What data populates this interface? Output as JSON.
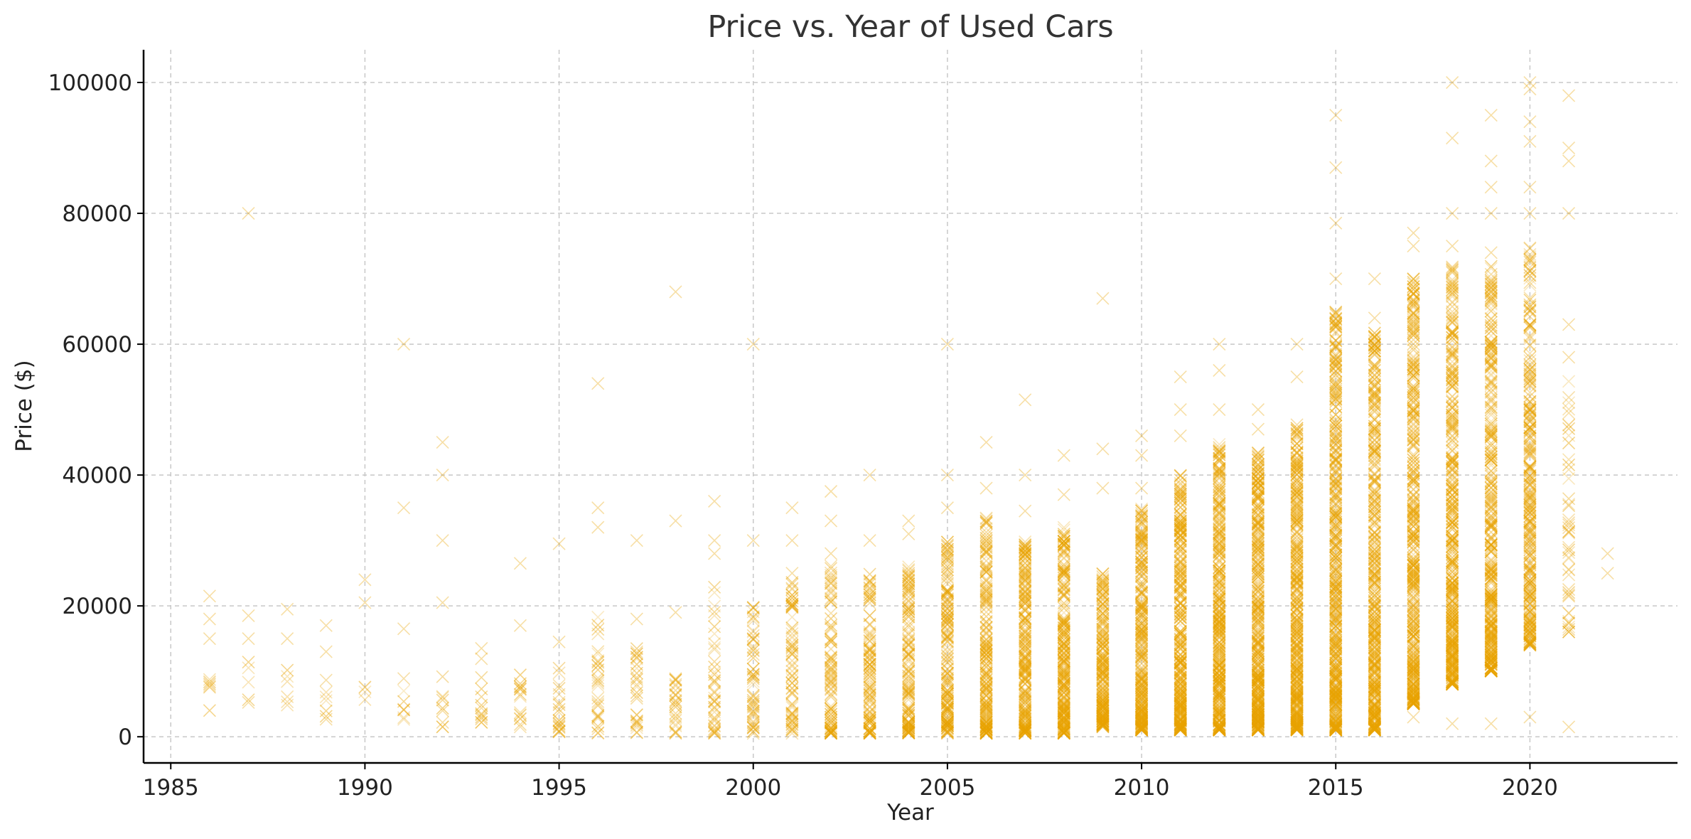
{
  "chart_data": {
    "type": "scatter",
    "title": "Price vs. Year of Used Cars",
    "xlabel": "Year",
    "ylabel": "Price ($)",
    "xlim": [
      1984.3,
      2023.8
    ],
    "ylim": [
      -4000,
      105000
    ],
    "xticks": [
      1985,
      1990,
      1995,
      2000,
      2005,
      2010,
      2015,
      2020
    ],
    "yticks": [
      0,
      20000,
      40000,
      60000,
      80000,
      100000
    ],
    "grid": true,
    "marker": "x",
    "color": "#E8A200",
    "outliers": [
      [
        1986,
        21500
      ],
      [
        1986,
        18000
      ],
      [
        1986,
        15000
      ],
      [
        1987,
        80000
      ],
      [
        1987,
        18500
      ],
      [
        1987,
        15000
      ],
      [
        1988,
        19500
      ],
      [
        1988,
        15000
      ],
      [
        1989,
        17000
      ],
      [
        1989,
        13000
      ],
      [
        1990,
        24000
      ],
      [
        1990,
        20500
      ],
      [
        1991,
        60000
      ],
      [
        1991,
        35000
      ],
      [
        1991,
        16500
      ],
      [
        1992,
        45000
      ],
      [
        1992,
        40000
      ],
      [
        1992,
        30000
      ],
      [
        1992,
        20500
      ],
      [
        1993,
        13500
      ],
      [
        1994,
        26500
      ],
      [
        1994,
        17000
      ],
      [
        1995,
        29500
      ],
      [
        1995,
        14500
      ],
      [
        1996,
        54000
      ],
      [
        1996,
        35000
      ],
      [
        1996,
        32000
      ],
      [
        1997,
        30000
      ],
      [
        1997,
        18000
      ],
      [
        1998,
        68000
      ],
      [
        1998,
        33000
      ],
      [
        1998,
        19000
      ],
      [
        1999,
        36000
      ],
      [
        1999,
        30000
      ],
      [
        1999,
        28000
      ],
      [
        2000,
        60000
      ],
      [
        2000,
        30000
      ],
      [
        2001,
        35000
      ],
      [
        2001,
        30000
      ],
      [
        2001,
        25000
      ],
      [
        2002,
        37500
      ],
      [
        2002,
        33000
      ],
      [
        2002,
        28000
      ],
      [
        2003,
        40000
      ],
      [
        2003,
        30000
      ],
      [
        2004,
        33000
      ],
      [
        2004,
        31000
      ],
      [
        2005,
        60000
      ],
      [
        2005,
        40000
      ],
      [
        2005,
        35000
      ],
      [
        2006,
        45000
      ],
      [
        2006,
        38000
      ],
      [
        2007,
        51500
      ],
      [
        2007,
        40000
      ],
      [
        2007,
        34500
      ],
      [
        2008,
        43000
      ],
      [
        2008,
        37000
      ],
      [
        2009,
        67000
      ],
      [
        2009,
        44000
      ],
      [
        2009,
        38000
      ],
      [
        2010,
        46000
      ],
      [
        2010,
        43000
      ],
      [
        2010,
        38000
      ],
      [
        2011,
        55000
      ],
      [
        2011,
        50000
      ],
      [
        2011,
        46000
      ],
      [
        2012,
        60000
      ],
      [
        2012,
        56000
      ],
      [
        2012,
        50000
      ],
      [
        2013,
        50000
      ],
      [
        2013,
        47000
      ],
      [
        2014,
        60000
      ],
      [
        2014,
        55000
      ],
      [
        2015,
        95000
      ],
      [
        2015,
        87000
      ],
      [
        2015,
        78500
      ],
      [
        2015,
        70000
      ],
      [
        2016,
        70000
      ],
      [
        2016,
        64000
      ],
      [
        2016,
        1500
      ],
      [
        2017,
        77000
      ],
      [
        2017,
        75000
      ],
      [
        2017,
        70000
      ],
      [
        2017,
        66000
      ],
      [
        2017,
        3000
      ],
      [
        2018,
        100000
      ],
      [
        2018,
        91500
      ],
      [
        2018,
        80000
      ],
      [
        2018,
        75000
      ],
      [
        2018,
        2000
      ],
      [
        2019,
        95000
      ],
      [
        2019,
        88000
      ],
      [
        2019,
        84000
      ],
      [
        2019,
        80000
      ],
      [
        2019,
        74000
      ],
      [
        2019,
        2000
      ],
      [
        2020,
        100000
      ],
      [
        2020,
        99000
      ],
      [
        2020,
        94000
      ],
      [
        2020,
        91000
      ],
      [
        2020,
        84000
      ],
      [
        2020,
        80000
      ],
      [
        2020,
        3000
      ],
      [
        2021,
        98000
      ],
      [
        2021,
        90000
      ],
      [
        2021,
        88000
      ],
      [
        2021,
        80000
      ],
      [
        2021,
        63000
      ],
      [
        2021,
        58000
      ],
      [
        2021,
        1500
      ],
      [
        2022,
        28000
      ],
      [
        2022,
        25000
      ]
    ],
    "bands": [
      {
        "x": 1986,
        "lo": 3500,
        "hi": 12000,
        "n": 6
      },
      {
        "x": 1987,
        "lo": 5000,
        "hi": 13000,
        "n": 5
      },
      {
        "x": 1988,
        "lo": 4500,
        "hi": 11000,
        "n": 6
      },
      {
        "x": 1989,
        "lo": 1000,
        "hi": 9000,
        "n": 7
      },
      {
        "x": 1990,
        "lo": 4500,
        "hi": 10000,
        "n": 4
      },
      {
        "x": 1991,
        "lo": 1500,
        "hi": 12000,
        "n": 8
      },
      {
        "x": 1992,
        "lo": 1500,
        "hi": 10500,
        "n": 9
      },
      {
        "x": 1993,
        "lo": 2000,
        "hi": 12000,
        "n": 12
      },
      {
        "x": 1994,
        "lo": 1500,
        "hi": 13000,
        "n": 16
      },
      {
        "x": 1995,
        "lo": 500,
        "hi": 11000,
        "n": 20
      },
      {
        "x": 1996,
        "lo": 500,
        "hi": 19000,
        "n": 28
      },
      {
        "x": 1997,
        "lo": 500,
        "hi": 18000,
        "n": 28
      },
      {
        "x": 1998,
        "lo": 500,
        "hi": 9000,
        "n": 25
      },
      {
        "x": 1999,
        "lo": 500,
        "hi": 26000,
        "n": 40
      },
      {
        "x": 2000,
        "lo": 500,
        "hi": 21000,
        "n": 55
      },
      {
        "x": 2001,
        "lo": 500,
        "hi": 24000,
        "n": 70
      },
      {
        "x": 2002,
        "lo": 500,
        "hi": 27000,
        "n": 95
      },
      {
        "x": 2003,
        "lo": 500,
        "hi": 25000,
        "n": 110
      },
      {
        "x": 2004,
        "lo": 500,
        "hi": 26000,
        "n": 140
      },
      {
        "x": 2005,
        "lo": 500,
        "hi": 30000,
        "n": 170
      },
      {
        "x": 2006,
        "lo": 500,
        "hi": 34000,
        "n": 200
      },
      {
        "x": 2007,
        "lo": 500,
        "hi": 30000,
        "n": 230
      },
      {
        "x": 2008,
        "lo": 500,
        "hi": 32000,
        "n": 260
      },
      {
        "x": 2009,
        "lo": 1500,
        "hi": 25000,
        "n": 220
      },
      {
        "x": 2010,
        "lo": 1000,
        "hi": 35000,
        "n": 290
      },
      {
        "x": 2011,
        "lo": 1000,
        "hi": 40000,
        "n": 340
      },
      {
        "x": 2012,
        "lo": 1000,
        "hi": 45000,
        "n": 380
      },
      {
        "x": 2013,
        "lo": 1000,
        "hi": 44000,
        "n": 400
      },
      {
        "x": 2014,
        "lo": 1000,
        "hi": 48000,
        "n": 420
      },
      {
        "x": 2015,
        "lo": 1000,
        "hi": 65000,
        "n": 450
      },
      {
        "x": 2016,
        "lo": 1000,
        "hi": 62000,
        "n": 430
      },
      {
        "x": 2017,
        "lo": 5000,
        "hi": 70000,
        "n": 430
      },
      {
        "x": 2018,
        "lo": 8000,
        "hi": 72000,
        "n": 420
      },
      {
        "x": 2019,
        "lo": 10000,
        "hi": 72000,
        "n": 380
      },
      {
        "x": 2020,
        "lo": 14000,
        "hi": 75000,
        "n": 300
      },
      {
        "x": 2021,
        "lo": 16000,
        "hi": 55000,
        "n": 45
      }
    ]
  }
}
